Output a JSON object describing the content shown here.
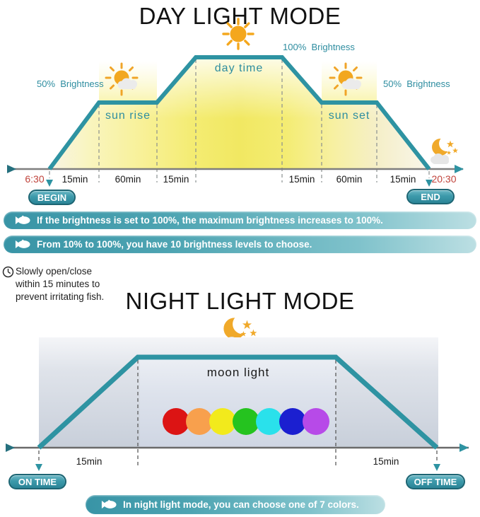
{
  "day": {
    "title": "DAY LIGHT MODE",
    "brightness_100": "100%  Brightness",
    "brightness_50_left": "50%  Brightness",
    "brightness_50_right": "50%  Brightness",
    "day_time_label": "day time",
    "sun_rise_label": "sun rise",
    "sun_set_label": "sun set",
    "start_time": "6:30",
    "end_time": "20:30",
    "begin_badge": "BEGIN",
    "end_badge": "END",
    "ticks": [
      "15min",
      "60min",
      "15min",
      "15min",
      "60min",
      "15min"
    ]
  },
  "banners": {
    "banner1": "If the brightness is set to 100%, the maximum brightness increases to 100%.",
    "banner2": "From 10% to 100%, you have 10 brightness levels to choose.",
    "night_banner": "In night light mode, you can choose one of 7 colors."
  },
  "note": {
    "line1": "Slowly open/close",
    "line2": "within 15 minutes to",
    "line3": "prevent irritating fish."
  },
  "night": {
    "title": "NIGHT LIGHT MODE",
    "moon_light_label": "moon light",
    "on_badge": "ON TIME",
    "off_badge": "OFF TIME",
    "ticks": [
      "15min",
      "15min"
    ],
    "dot_colors": [
      "#dc1414",
      "#f8a04d",
      "#f2ea1c",
      "#25c31f",
      "#2ae1eb",
      "#1b1fd0",
      "#b74ae8"
    ]
  },
  "chart_data": [
    {
      "type": "area",
      "title": "DAY LIGHT MODE",
      "x_timeline": [
        "6:30",
        "15min",
        "60min",
        "15min",
        "day time",
        "15min",
        "60min",
        "15min",
        "20:30"
      ],
      "brightness_profile_percent": [
        0,
        50,
        50,
        100,
        100,
        50,
        50,
        0
      ],
      "annotations": [
        "sun rise",
        "day time",
        "sun set",
        "50% Brightness",
        "100% Brightness",
        "BEGIN",
        "END"
      ]
    },
    {
      "type": "area",
      "title": "NIGHT LIGHT MODE",
      "x_timeline": [
        "ON TIME",
        "15min",
        "moon light",
        "15min",
        "OFF TIME"
      ],
      "brightness_profile_percent": [
        0,
        100,
        100,
        0
      ],
      "annotations": [
        "moon light",
        "7 selectable colors"
      ]
    }
  ],
  "colors": {
    "teal_line": "#2e93a2",
    "teal_text": "#2e8da0",
    "red_text": "#c0443c",
    "banner_teal": "#3f9dac"
  }
}
